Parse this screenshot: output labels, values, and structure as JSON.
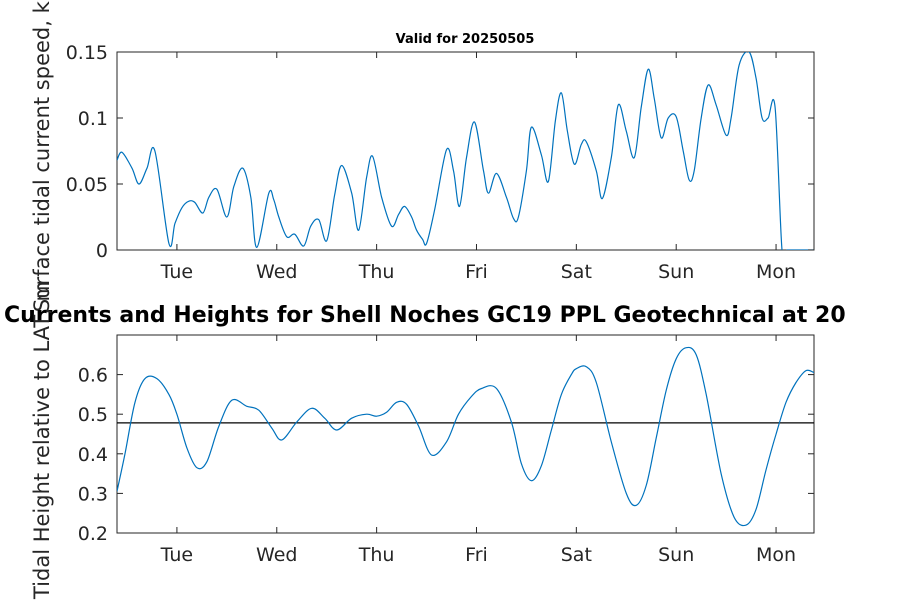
{
  "chart_data": [
    {
      "type": "line",
      "title": "Valid for 20250505",
      "ylabel": "Surface tidal current speed, kn",
      "xlabel": "",
      "xlim": [
        0.4,
        7.38
      ],
      "ylim": [
        0,
        0.15
      ],
      "yticks": [
        0,
        0.05,
        0.1,
        0.15
      ],
      "ytick_labels": [
        "0",
        "0.05",
        "0.1",
        "0.15"
      ],
      "xticks": [
        1,
        2,
        3,
        4,
        5,
        6,
        7
      ],
      "xtick_labels": [
        "Tue",
        "Wed",
        "Thu",
        "Fri",
        "Sat",
        "Sun",
        "Mon"
      ],
      "grid": false,
      "color": "#0072BD",
      "series": [
        {
          "x": [
            0.4,
            0.45,
            0.55,
            0.62,
            0.7,
            0.78,
            0.92,
            0.98,
            1.05,
            1.12,
            1.18,
            1.26,
            1.32,
            1.4,
            1.5,
            1.57,
            1.66,
            1.74,
            1.8,
            1.92,
            1.97,
            2.02,
            2.1,
            2.18,
            2.27,
            2.34,
            2.42,
            2.5,
            2.58,
            2.65,
            2.75,
            2.82,
            2.9,
            2.96,
            3.05,
            3.15,
            3.22,
            3.28,
            3.35,
            3.4,
            3.46,
            3.5,
            3.58,
            3.7,
            3.77,
            3.83,
            3.9,
            3.98,
            4.07,
            4.12,
            4.2,
            4.3,
            4.37,
            4.42,
            4.5,
            4.55,
            4.65,
            4.72,
            4.79,
            4.85,
            4.91,
            4.98,
            5.05,
            5.1,
            5.2,
            5.26,
            5.35,
            5.42,
            5.5,
            5.58,
            5.65,
            5.72,
            5.78,
            5.85,
            5.92,
            6.0,
            6.07,
            6.13,
            6.18,
            6.25,
            6.32,
            6.4,
            6.5,
            6.55,
            6.63,
            6.73,
            6.8,
            6.86,
            6.92,
            6.99,
            7.06,
            7.11,
            7.17,
            7.25,
            7.3,
            7.34,
            7.38
          ],
          "y": [
            0.068,
            0.074,
            0.062,
            0.05,
            0.062,
            0.075,
            0.005,
            0.02,
            0.032,
            0.037,
            0.036,
            0.028,
            0.04,
            0.046,
            0.025,
            0.048,
            0.062,
            0.04,
            0.002,
            0.043,
            0.038,
            0.025,
            0.01,
            0.012,
            0.003,
            0.018,
            0.023,
            0.007,
            0.042,
            0.064,
            0.043,
            0.015,
            0.055,
            0.071,
            0.04,
            0.018,
            0.027,
            0.033,
            0.025,
            0.015,
            0.008,
            0.005,
            0.03,
            0.076,
            0.06,
            0.033,
            0.07,
            0.097,
            0.06,
            0.043,
            0.058,
            0.04,
            0.024,
            0.025,
            0.06,
            0.093,
            0.072,
            0.052,
            0.098,
            0.119,
            0.09,
            0.065,
            0.08,
            0.082,
            0.06,
            0.039,
            0.07,
            0.11,
            0.09,
            0.07,
            0.108,
            0.137,
            0.115,
            0.085,
            0.1,
            0.101,
            0.075,
            0.053,
            0.06,
            0.1,
            0.125,
            0.11,
            0.087,
            0.1,
            0.14,
            0.15,
            0.13,
            0.1,
            0.1,
            0.108,
            0.0,
            0.0,
            0.0,
            0.0,
            0.0,
            0.0,
            0.0
          ]
        }
      ]
    },
    {
      "type": "line",
      "title": "Currents and Heights for Shell Noches   GC19 PPL  Geotechnical at 20",
      "ylabel": "Tidal Height relative to LAT, m",
      "xlabel": "",
      "xlim": [
        0.4,
        7.38
      ],
      "ylim": [
        0.2,
        0.7
      ],
      "yticks": [
        0.2,
        0.3,
        0.4,
        0.5,
        0.6
      ],
      "ytick_labels": [
        "0.2",
        "0.3",
        "0.4",
        "0.5",
        "0.6"
      ],
      "xticks": [
        1,
        2,
        3,
        4,
        5,
        6,
        7
      ],
      "xtick_labels": [
        "Tue",
        "Wed",
        "Thu",
        "Fri",
        "Sat",
        "Sun",
        "Mon"
      ],
      "grid": false,
      "color": "#0072BD",
      "reference_line": 0.478,
      "series": [
        {
          "x": [
            0.4,
            0.48,
            0.58,
            0.68,
            0.8,
            0.92,
            1.0,
            1.1,
            1.2,
            1.3,
            1.42,
            1.55,
            1.7,
            1.82,
            1.95,
            2.05,
            2.2,
            2.35,
            2.48,
            2.6,
            2.75,
            2.9,
            3.0,
            3.1,
            3.2,
            3.3,
            3.42,
            3.55,
            3.7,
            3.82,
            3.95,
            4.05,
            4.2,
            4.35,
            4.45,
            4.55,
            4.65,
            4.75,
            4.85,
            4.95,
            5.0,
            5.1,
            5.2,
            5.35,
            5.5,
            5.6,
            5.7,
            5.8,
            5.9,
            6.0,
            6.1,
            6.2,
            6.3,
            6.45,
            6.58,
            6.7,
            6.8,
            6.9,
            7.0,
            7.1,
            7.2,
            7.3,
            7.38
          ],
          "y": [
            0.305,
            0.4,
            0.53,
            0.59,
            0.59,
            0.55,
            0.5,
            0.415,
            0.365,
            0.38,
            0.47,
            0.535,
            0.52,
            0.51,
            0.465,
            0.435,
            0.48,
            0.515,
            0.49,
            0.46,
            0.49,
            0.5,
            0.495,
            0.505,
            0.53,
            0.525,
            0.47,
            0.397,
            0.43,
            0.5,
            0.545,
            0.565,
            0.565,
            0.48,
            0.375,
            0.332,
            0.37,
            0.46,
            0.55,
            0.6,
            0.615,
            0.62,
            0.58,
            0.43,
            0.3,
            0.27,
            0.32,
            0.44,
            0.56,
            0.64,
            0.668,
            0.65,
            0.55,
            0.35,
            0.24,
            0.22,
            0.26,
            0.36,
            0.45,
            0.53,
            0.58,
            0.61,
            0.605
          ]
        }
      ]
    }
  ]
}
